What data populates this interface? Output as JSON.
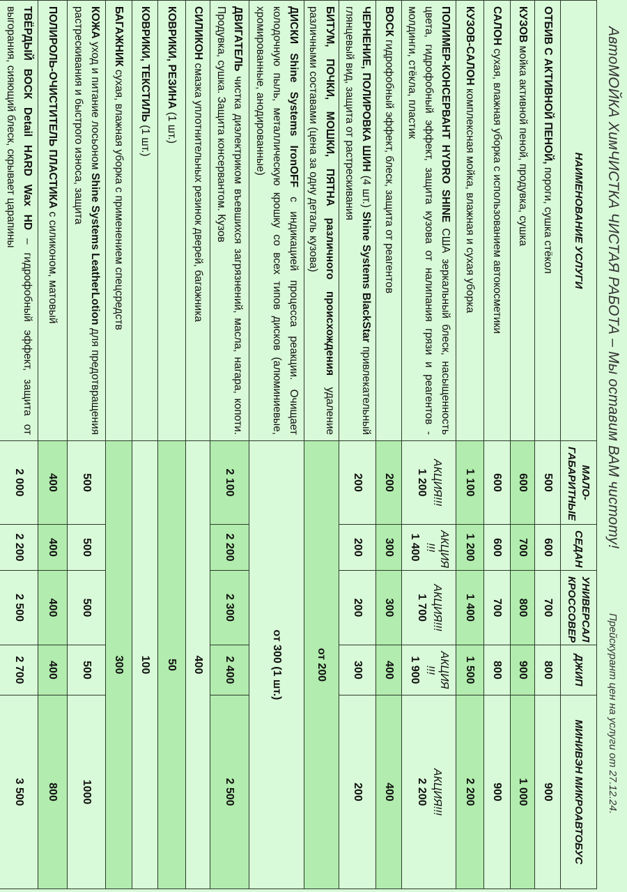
{
  "header": {
    "title": "АвтоМОЙКА ХимЧИСТКА ЧИСТАЯ РАБОТА – Мы оставим ВАМ чистоту!",
    "subtitle": "Прейскурант цен на услуги от 27.12.24."
  },
  "colors": {
    "background": "#d9fad8",
    "highlight": "#b2ecae",
    "border": "#2a3a2a"
  },
  "columns": [
    "НАИМЕНОВАНИЕ УСЛУГИ",
    "МАЛО-ГАБАРИТНЫЕ",
    "СЕДАН",
    "УНИВЕРСАЛ КРОССОВЕР",
    "ДЖИП",
    "МИНИВЭН МИКРОАВТОБУС"
  ],
  "rows": [
    {
      "bold": "ОТБИВ С АКТИВНОЙ ПЕНОЙ,",
      "text": " пороги, сушка стёкол",
      "prices": [
        "500",
        "600",
        "700",
        "800",
        "900"
      ]
    },
    {
      "bold": "КУЗОВ",
      "text": " мойка активной пеной, продувка, сушка",
      "prices": [
        "600",
        "700",
        "800",
        "900",
        "1 000"
      ]
    },
    {
      "bold": "САЛОН",
      "text": " сухая, влажная уборка с использованием автокосметики",
      "prices": [
        "600",
        "600",
        "700",
        "800",
        "900"
      ]
    },
    {
      "bold": "КУЗОВ-САЛОН",
      "text": " комплексная мойка, влажная и сухая уборка",
      "prices": [
        "1 100",
        "1 200",
        "1 400",
        "1 500",
        "2 200"
      ]
    },
    {
      "bold": "ПОЛИМЕР-КОНСЕРВАНТ HYDRO SHINE",
      "text": " США зеркальный блеск, насыщенность цвета, гидрофобный эффект, защита кузова от налипания грязи и реагентов - молдинги, стёкла, пластик",
      "promos": [
        "АКЦИЯ!!!",
        "АКЦИЯ !!!",
        "АКЦИЯ!!!",
        "АКЦИЯ !!!",
        "АКЦИЯ!!!"
      ],
      "prices": [
        "1 200",
        "1 400",
        "1 700",
        "1 900",
        "2 200"
      ]
    },
    {
      "bold": "ВОСК",
      "text": " гидрофобный эффект, блеск, защита от реагентов",
      "prices": [
        "200",
        "300",
        "300",
        "400",
        "400"
      ]
    },
    {
      "bold": "ЧЕРНЕНИЕ, ПОЛИРОВКА ШИН",
      "text": " (4 шт.) ",
      "bold2": "Shine Systems BlackStar",
      "text2": " привлекательный глянцевый вид, защита от растрескивания",
      "prices": [
        "200",
        "200",
        "200",
        "300",
        "200"
      ]
    },
    {
      "bold": "БИТУМ, ПОЧКИ, МОШКИ, ПЯТНА различного происхождения",
      "text": " удаление различными составами (цена за одну деталь кузова)",
      "merged": "от 200"
    },
    {
      "bold": "ДИСКИ Shine Systems IronOFF",
      "text": " с индикацией процесса реакции. Очищает колодочную пыль, металлическую крошку со всех типов дисков (алюминиевые, хромированные, анодированные)",
      "merged": "от 300 (1 шт.)"
    },
    {
      "bold": "ДВИГАТЕЛЬ",
      "text": " чистка диэлектриком въевшихся загрязнений, масла, нагара, копоти. Продувка, сушка. Защита консервантом. Кузов",
      "prices": [
        "2 100",
        "2 200",
        "2 300",
        "2 400",
        "2 500"
      ]
    },
    {
      "bold": "СИЛИКОН",
      "text": " смазка уплотнительных резинок дверей, багажника",
      "merged": "400"
    },
    {
      "bold": "КОВРИКИ, РЕЗИНА",
      "text": " (1 шт.)",
      "merged": "50"
    },
    {
      "bold": "КОВРИКИ, ТЕКСТИЛЬ",
      "text": " (1 шт.)",
      "merged": "100"
    },
    {
      "bold": "БАГАЖНИК",
      "text": " сухая, влажная уборка с применением спецсредств",
      "merged": "300"
    },
    {
      "bold": "КОЖА",
      "text": " уход и питание лосьоном ",
      "bold2": "Shine Systems LeatherLotion",
      "text2": " для предотвращения растрескивания и быстрого износа, защита",
      "prices": [
        "500",
        "500",
        "500",
        "500",
        "1000"
      ]
    },
    {
      "bold": "ПОЛИРОЛЬ-ОЧИСТИТЕЛЬ ПЛАСТИКА",
      "text": " с силиконом, матовый",
      "prices": [
        "400",
        "400",
        "400",
        "400",
        "800"
      ]
    },
    {
      "bold": "ТВЁРДЫЙ ВОСК Detail HARD Wax HD",
      "text": " – гидрофобный эффект, защита от выгорания, сияющий блеск, скрывает царапины",
      "prices": [
        "2 000",
        "2 200",
        "2 500",
        "2 700",
        "3 500"
      ]
    }
  ]
}
